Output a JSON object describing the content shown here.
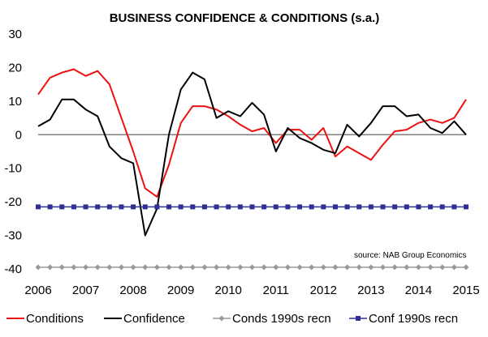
{
  "chart_data": {
    "type": "line",
    "title": "BUSINESS CONFIDENCE & CONDITIONS (s.a.)",
    "source": "source: NAB Group Economics",
    "xlabel": "",
    "ylabel": "",
    "xlim": [
      2006,
      2015
    ],
    "ylim": [
      -40,
      30
    ],
    "x_ticks": [
      "2006",
      "2007",
      "2008",
      "2009",
      "2010",
      "2011",
      "2012",
      "2013",
      "2014",
      "2015"
    ],
    "y_ticks": [
      "30",
      "20",
      "10",
      "0",
      "-10",
      "-20",
      "-30",
      "-40"
    ],
    "grid": false,
    "legend_position": "bottom",
    "series": [
      {
        "name": "Conditions",
        "color": "#ee1111",
        "style": "line",
        "x": [
          2006.0,
          2006.25,
          2006.5,
          2006.75,
          2007.0,
          2007.25,
          2007.5,
          2007.75,
          2008.0,
          2008.25,
          2008.5,
          2008.75,
          2009.0,
          2009.25,
          2009.5,
          2009.75,
          2010.0,
          2010.25,
          2010.5,
          2010.75,
          2011.0,
          2011.25,
          2011.5,
          2011.75,
          2012.0,
          2012.25,
          2012.5,
          2012.75,
          2013.0,
          2013.25,
          2013.5,
          2013.75,
          2014.0,
          2014.25,
          2014.5,
          2014.75,
          2015.0
        ],
        "y": [
          12,
          17,
          18.5,
          19.5,
          17.5,
          19,
          15,
          5,
          -5,
          -16,
          -18.5,
          -9,
          3.5,
          8.5,
          8.5,
          7.5,
          5.5,
          3,
          1,
          2,
          -2.5,
          1.5,
          1.5,
          -1.5,
          2,
          -6.5,
          -3.5,
          -5.5,
          -7.5,
          -3,
          1,
          1.5,
          3.5,
          4.5,
          3.5,
          5,
          10.5
        ]
      },
      {
        "name": "Confidence",
        "color": "#000000",
        "style": "line",
        "x": [
          2006.0,
          2006.25,
          2006.5,
          2006.75,
          2007.0,
          2007.25,
          2007.5,
          2007.75,
          2008.0,
          2008.25,
          2008.5,
          2008.75,
          2009.0,
          2009.25,
          2009.5,
          2009.75,
          2010.0,
          2010.25,
          2010.5,
          2010.75,
          2011.0,
          2011.25,
          2011.5,
          2011.75,
          2012.0,
          2012.25,
          2012.5,
          2012.75,
          2013.0,
          2013.25,
          2013.5,
          2013.75,
          2014.0,
          2014.25,
          2014.5,
          2014.75,
          2015.0
        ],
        "y": [
          2.5,
          4.5,
          10.5,
          10.5,
          7.5,
          5.5,
          -3.5,
          -7,
          -8.5,
          -30,
          -22,
          0,
          13.5,
          18.5,
          16.5,
          5,
          7,
          5.5,
          9.5,
          6,
          -5,
          2,
          -1,
          -2.5,
          -4.5,
          -5.5,
          3,
          -0.5,
          3.5,
          8.5,
          8.5,
          5.5,
          6,
          2,
          0.5,
          4,
          0
        ]
      },
      {
        "name": "Conds 1990s recn",
        "color": "#999999",
        "style": "marker-line",
        "marker": "diamond",
        "x_start": 2006.0,
        "x_end": 2015.0,
        "count": 37,
        "value": -39.5
      },
      {
        "name": "Conf 1990s recn",
        "color": "#2e3192",
        "style": "marker-line",
        "marker": "square",
        "x_start": 2006.0,
        "x_end": 2015.0,
        "count": 37,
        "value": -21.5
      }
    ]
  }
}
